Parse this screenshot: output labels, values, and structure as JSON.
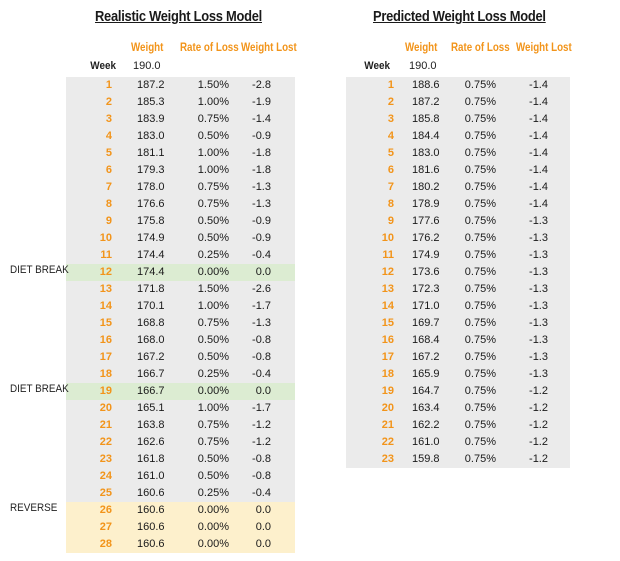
{
  "realistic": {
    "title": "Realistic Weight Loss Model",
    "headers": {
      "weight": "Weight",
      "rate": "Rate of Loss",
      "lost": "Weight Lost"
    },
    "week_label": "Week",
    "start_weight": "190.0",
    "rows": [
      {
        "week": "1",
        "weight": "187.2",
        "rate": "1.50%",
        "lost": "-2.8",
        "label": ""
      },
      {
        "week": "2",
        "weight": "185.3",
        "rate": "1.00%",
        "lost": "-1.9",
        "label": ""
      },
      {
        "week": "3",
        "weight": "183.9",
        "rate": "0.75%",
        "lost": "-1.4",
        "label": ""
      },
      {
        "week": "4",
        "weight": "183.0",
        "rate": "0.50%",
        "lost": "-0.9",
        "label": ""
      },
      {
        "week": "5",
        "weight": "181.1",
        "rate": "1.00%",
        "lost": "-1.8",
        "label": ""
      },
      {
        "week": "6",
        "weight": "179.3",
        "rate": "1.00%",
        "lost": "-1.8",
        "label": ""
      },
      {
        "week": "7",
        "weight": "178.0",
        "rate": "0.75%",
        "lost": "-1.3",
        "label": ""
      },
      {
        "week": "8",
        "weight": "176.6",
        "rate": "0.75%",
        "lost": "-1.3",
        "label": ""
      },
      {
        "week": "9",
        "weight": "175.8",
        "rate": "0.50%",
        "lost": "-0.9",
        "label": ""
      },
      {
        "week": "10",
        "weight": "174.9",
        "rate": "0.50%",
        "lost": "-0.9",
        "label": ""
      },
      {
        "week": "11",
        "weight": "174.4",
        "rate": "0.25%",
        "lost": "-0.4",
        "label": ""
      },
      {
        "week": "12",
        "weight": "174.4",
        "rate": "0.00%",
        "lost": "0.0",
        "label": "DIET BREAK"
      },
      {
        "week": "13",
        "weight": "171.8",
        "rate": "1.50%",
        "lost": "-2.6",
        "label": ""
      },
      {
        "week": "14",
        "weight": "170.1",
        "rate": "1.00%",
        "lost": "-1.7",
        "label": ""
      },
      {
        "week": "15",
        "weight": "168.8",
        "rate": "0.75%",
        "lost": "-1.3",
        "label": ""
      },
      {
        "week": "16",
        "weight": "168.0",
        "rate": "0.50%",
        "lost": "-0.8",
        "label": ""
      },
      {
        "week": "17",
        "weight": "167.2",
        "rate": "0.50%",
        "lost": "-0.8",
        "label": ""
      },
      {
        "week": "18",
        "weight": "166.7",
        "rate": "0.25%",
        "lost": "-0.4",
        "label": ""
      },
      {
        "week": "19",
        "weight": "166.7",
        "rate": "0.00%",
        "lost": "0.0",
        "label": "DIET BREAK"
      },
      {
        "week": "20",
        "weight": "165.1",
        "rate": "1.00%",
        "lost": "-1.7",
        "label": ""
      },
      {
        "week": "21",
        "weight": "163.8",
        "rate": "0.75%",
        "lost": "-1.2",
        "label": ""
      },
      {
        "week": "22",
        "weight": "162.6",
        "rate": "0.75%",
        "lost": "-1.2",
        "label": ""
      },
      {
        "week": "23",
        "weight": "161.8",
        "rate": "0.50%",
        "lost": "-0.8",
        "label": ""
      },
      {
        "week": "24",
        "weight": "161.0",
        "rate": "0.50%",
        "lost": "-0.8",
        "label": ""
      },
      {
        "week": "25",
        "weight": "160.6",
        "rate": "0.25%",
        "lost": "-0.4",
        "label": ""
      },
      {
        "week": "26",
        "weight": "160.6",
        "rate": "0.00%",
        "lost": "0.0",
        "label": "REVERSE"
      },
      {
        "week": "27",
        "weight": "160.6",
        "rate": "0.00%",
        "lost": "0.0",
        "label": ""
      },
      {
        "week": "28",
        "weight": "160.6",
        "rate": "0.00%",
        "lost": "0.0",
        "label": ""
      }
    ]
  },
  "predicted": {
    "title": "Predicted Weight Loss Model",
    "headers": {
      "weight": "Weight",
      "rate": "Rate of Loss",
      "lost": "Weight Lost"
    },
    "week_label": "Week",
    "start_weight": "190.0",
    "rows": [
      {
        "week": "1",
        "weight": "188.6",
        "rate": "0.75%",
        "lost": "-1.4"
      },
      {
        "week": "2",
        "weight": "187.2",
        "rate": "0.75%",
        "lost": "-1.4"
      },
      {
        "week": "3",
        "weight": "185.8",
        "rate": "0.75%",
        "lost": "-1.4"
      },
      {
        "week": "4",
        "weight": "184.4",
        "rate": "0.75%",
        "lost": "-1.4"
      },
      {
        "week": "5",
        "weight": "183.0",
        "rate": "0.75%",
        "lost": "-1.4"
      },
      {
        "week": "6",
        "weight": "181.6",
        "rate": "0.75%",
        "lost": "-1.4"
      },
      {
        "week": "7",
        "weight": "180.2",
        "rate": "0.75%",
        "lost": "-1.4"
      },
      {
        "week": "8",
        "weight": "178.9",
        "rate": "0.75%",
        "lost": "-1.4"
      },
      {
        "week": "9",
        "weight": "177.6",
        "rate": "0.75%",
        "lost": "-1.3"
      },
      {
        "week": "10",
        "weight": "176.2",
        "rate": "0.75%",
        "lost": "-1.3"
      },
      {
        "week": "11",
        "weight": "174.9",
        "rate": "0.75%",
        "lost": "-1.3"
      },
      {
        "week": "12",
        "weight": "173.6",
        "rate": "0.75%",
        "lost": "-1.3"
      },
      {
        "week": "13",
        "weight": "172.3",
        "rate": "0.75%",
        "lost": "-1.3"
      },
      {
        "week": "14",
        "weight": "171.0",
        "rate": "0.75%",
        "lost": "-1.3"
      },
      {
        "week": "15",
        "weight": "169.7",
        "rate": "0.75%",
        "lost": "-1.3"
      },
      {
        "week": "16",
        "weight": "168.4",
        "rate": "0.75%",
        "lost": "-1.3"
      },
      {
        "week": "17",
        "weight": "167.2",
        "rate": "0.75%",
        "lost": "-1.3"
      },
      {
        "week": "18",
        "weight": "165.9",
        "rate": "0.75%",
        "lost": "-1.3"
      },
      {
        "week": "19",
        "weight": "164.7",
        "rate": "0.75%",
        "lost": "-1.2"
      },
      {
        "week": "20",
        "weight": "163.4",
        "rate": "0.75%",
        "lost": "-1.2"
      },
      {
        "week": "21",
        "weight": "162.2",
        "rate": "0.75%",
        "lost": "-1.2"
      },
      {
        "week": "22",
        "weight": "161.0",
        "rate": "0.75%",
        "lost": "-1.2"
      },
      {
        "week": "23",
        "weight": "159.8",
        "rate": "0.75%",
        "lost": "-1.2"
      }
    ]
  },
  "colors": {
    "accent": "#f2941a",
    "shade": "#ebebeb",
    "diet_break": "#dcecd2",
    "reverse": "#fdf0cc"
  }
}
